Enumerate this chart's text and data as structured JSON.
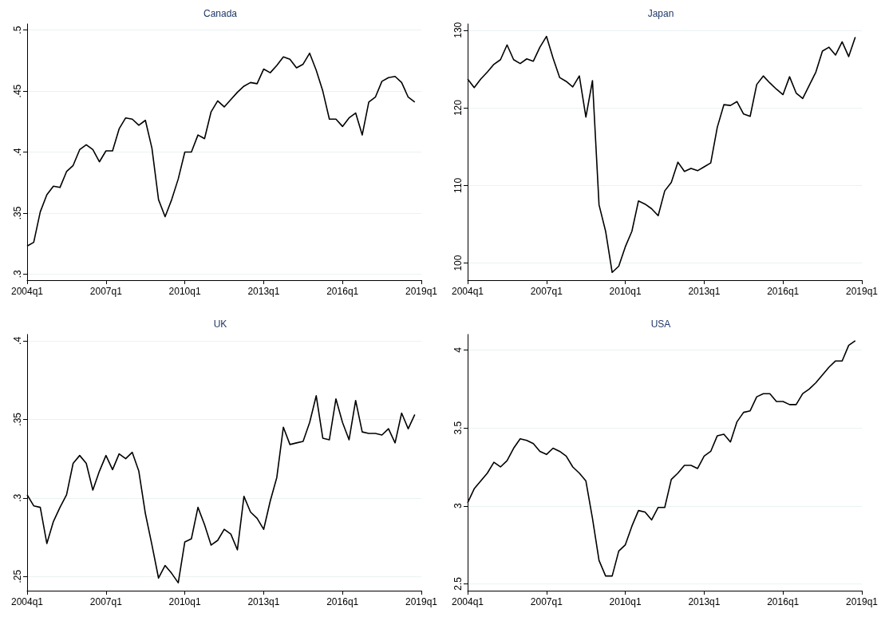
{
  "chart_data": [
    {
      "type": "line",
      "title": "Canada",
      "color": "#000000",
      "grid": "y",
      "categories": [
        "2004q1",
        null,
        null,
        null,
        null,
        null,
        null,
        null,
        null,
        null,
        null,
        null,
        "2007q1",
        null,
        null,
        null,
        null,
        null,
        null,
        null,
        null,
        null,
        null,
        null,
        "2010q1",
        null,
        null,
        null,
        null,
        null,
        null,
        null,
        null,
        null,
        null,
        null,
        "2013q1",
        null,
        null,
        null,
        null,
        null,
        null,
        null,
        null,
        null,
        null,
        null,
        "2016q1",
        null,
        null,
        null,
        null,
        null,
        null,
        null,
        null,
        null,
        null,
        null,
        "2019q1"
      ],
      "values": [
        0.323,
        0.326,
        0.351,
        0.365,
        0.372,
        0.371,
        0.384,
        0.389,
        0.402,
        0.406,
        0.402,
        0.392,
        0.401,
        0.401,
        0.419,
        0.428,
        0.427,
        0.422,
        0.426,
        0.403,
        0.361,
        0.347,
        0.361,
        0.378,
        0.4,
        0.4,
        0.414,
        0.411,
        0.433,
        0.442,
        0.437,
        0.443,
        0.449,
        0.454,
        0.457,
        0.456,
        0.468,
        0.465,
        0.471,
        0.478,
        0.476,
        0.469,
        0.472,
        0.481,
        0.467,
        0.45,
        0.427,
        0.427,
        0.421,
        0.428,
        0.432,
        0.414,
        0.441,
        0.445,
        0.458,
        0.461,
        0.462,
        0.457,
        0.445,
        0.441,
        null
      ],
      "ylim": [
        0.295,
        0.505
      ],
      "yticks": [
        {
          "value": 0.3,
          "label": ".3"
        },
        {
          "value": 0.35,
          "label": ".35"
        },
        {
          "value": 0.4,
          "label": ".4"
        },
        {
          "value": 0.45,
          "label": ".45"
        },
        {
          "value": 0.5,
          "label": ".5"
        }
      ]
    },
    {
      "type": "line",
      "title": "Japan",
      "color": "#000000",
      "grid": "y",
      "categories": [
        "2004q1",
        null,
        null,
        null,
        null,
        null,
        null,
        null,
        null,
        null,
        null,
        null,
        "2007q1",
        null,
        null,
        null,
        null,
        null,
        null,
        null,
        null,
        null,
        null,
        null,
        "2010q1",
        null,
        null,
        null,
        null,
        null,
        null,
        null,
        null,
        null,
        null,
        null,
        "2013q1",
        null,
        null,
        null,
        null,
        null,
        null,
        null,
        null,
        null,
        null,
        null,
        "2016q1",
        null,
        null,
        null,
        null,
        null,
        null,
        null,
        null,
        null,
        null,
        null,
        "2019q1"
      ],
      "values": [
        123.7,
        122.6,
        123.7,
        124.6,
        125.6,
        126.2,
        128.1,
        126.2,
        125.7,
        126.3,
        126.0,
        127.8,
        129.2,
        126.4,
        123.9,
        123.4,
        122.7,
        124.1,
        118.8,
        123.5,
        107.5,
        104.1,
        98.8,
        99.6,
        102.1,
        104.1,
        108.0,
        107.6,
        107.0,
        106.1,
        109.3,
        110.4,
        113.0,
        111.8,
        112.2,
        111.9,
        112.4,
        112.9,
        117.5,
        120.4,
        120.3,
        120.8,
        119.2,
        118.9,
        123.0,
        124.1,
        123.2,
        122.4,
        121.7,
        124.0,
        121.9,
        121.2,
        122.9,
        124.6,
        127.3,
        127.8,
        126.8,
        128.5,
        126.6,
        129.1,
        null
      ],
      "ylim": [
        97.8,
        130.8
      ],
      "yticks": [
        100,
        110,
        120,
        130
      ]
    },
    {
      "type": "line",
      "title": "UK",
      "color": "#000000",
      "grid": "y",
      "categories": [
        "2004q1",
        null,
        null,
        null,
        null,
        null,
        null,
        null,
        null,
        null,
        null,
        null,
        "2007q1",
        null,
        null,
        null,
        null,
        null,
        null,
        null,
        null,
        null,
        null,
        null,
        "2010q1",
        null,
        null,
        null,
        null,
        null,
        null,
        null,
        null,
        null,
        null,
        null,
        "2013q1",
        null,
        null,
        null,
        null,
        null,
        null,
        null,
        null,
        null,
        null,
        null,
        "2016q1",
        null,
        null,
        null,
        null,
        null,
        null,
        null,
        null,
        null,
        null,
        null,
        "2019q1"
      ],
      "values": [
        0.302,
        0.295,
        0.294,
        0.271,
        0.285,
        0.294,
        0.302,
        0.322,
        0.327,
        0.322,
        0.305,
        0.317,
        0.327,
        0.318,
        0.328,
        0.325,
        0.329,
        0.317,
        0.29,
        0.27,
        0.249,
        0.257,
        0.252,
        0.246,
        0.272,
        0.274,
        0.294,
        0.283,
        0.27,
        0.273,
        0.28,
        0.277,
        0.267,
        0.301,
        0.291,
        0.287,
        0.28,
        0.298,
        0.313,
        0.345,
        0.334,
        0.335,
        0.336,
        0.348,
        0.365,
        0.338,
        0.337,
        0.363,
        0.348,
        0.337,
        0.362,
        0.342,
        0.341,
        0.341,
        0.34,
        0.344,
        0.335,
        0.354,
        0.344,
        0.353,
        null
      ],
      "ylim": [
        0.241,
        0.404
      ],
      "yticks": [
        {
          "value": 0.25,
          "label": ".25"
        },
        {
          "value": 0.3,
          "label": ".3"
        },
        {
          "value": 0.35,
          "label": ".35"
        },
        {
          "value": 0.4,
          "label": ".4"
        }
      ]
    },
    {
      "type": "line",
      "title": "USA",
      "color": "#000000",
      "grid": "y",
      "categories": [
        "2004q1",
        null,
        null,
        null,
        null,
        null,
        null,
        null,
        null,
        null,
        null,
        null,
        "2007q1",
        null,
        null,
        null,
        null,
        null,
        null,
        null,
        null,
        null,
        null,
        null,
        "2010q1",
        null,
        null,
        null,
        null,
        null,
        null,
        null,
        null,
        null,
        null,
        null,
        "2013q1",
        null,
        null,
        null,
        null,
        null,
        null,
        null,
        null,
        null,
        null,
        null,
        "2016q1",
        null,
        null,
        null,
        null,
        null,
        null,
        null,
        null,
        null,
        null,
        null,
        "2019q1"
      ],
      "values": [
        3.02,
        3.11,
        3.16,
        3.21,
        3.28,
        3.25,
        3.29,
        3.37,
        3.43,
        3.42,
        3.4,
        3.35,
        3.33,
        3.37,
        3.35,
        3.32,
        3.25,
        3.21,
        3.16,
        2.92,
        2.65,
        2.55,
        2.55,
        2.71,
        2.75,
        2.87,
        2.97,
        2.96,
        2.91,
        2.99,
        2.99,
        3.17,
        3.21,
        3.26,
        3.26,
        3.24,
        3.32,
        3.35,
        3.45,
        3.46,
        3.41,
        3.54,
        3.6,
        3.61,
        3.7,
        3.72,
        3.72,
        3.67,
        3.67,
        3.65,
        3.65,
        3.72,
        3.75,
        3.79,
        3.84,
        3.89,
        3.93,
        3.93,
        4.03,
        4.06,
        null
      ],
      "ylim": [
        2.456,
        4.1
      ],
      "yticks": [
        2.5,
        3,
        3.5,
        4
      ]
    }
  ]
}
